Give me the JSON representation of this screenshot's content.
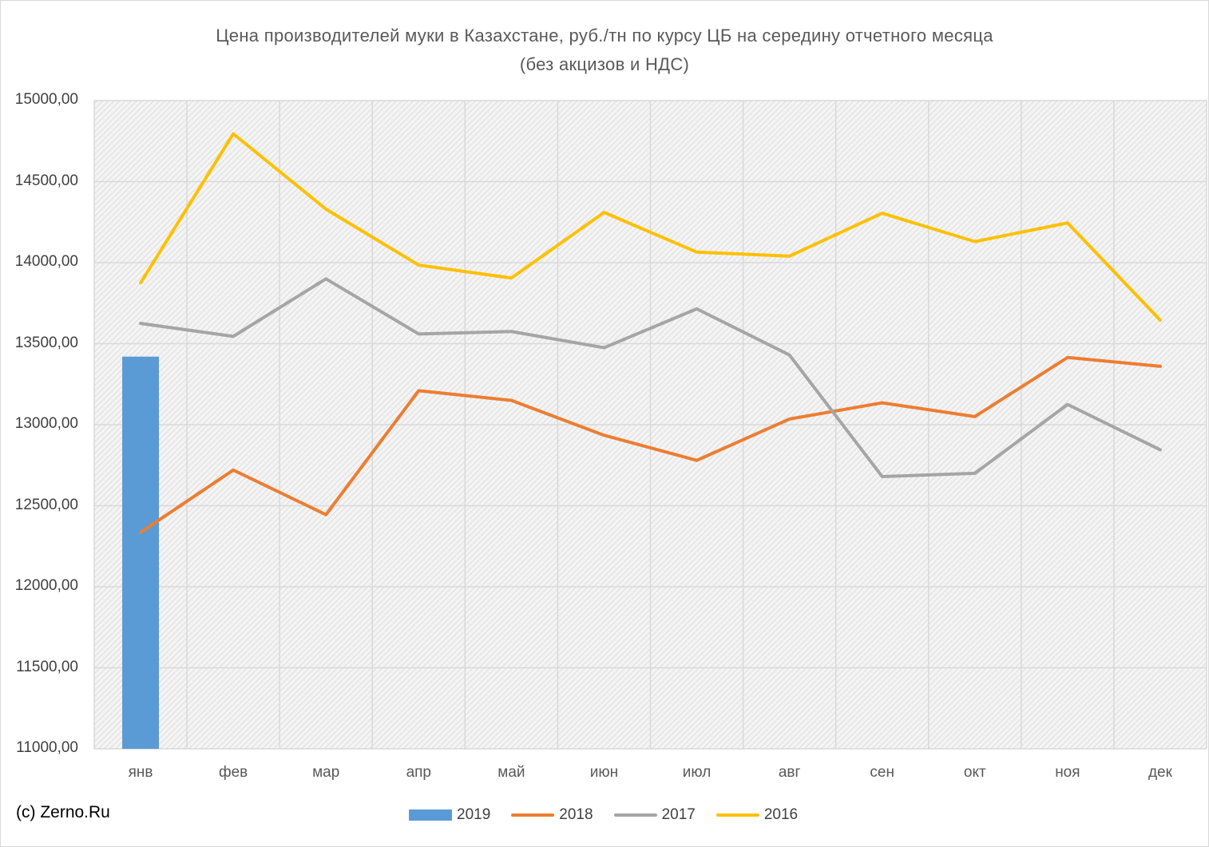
{
  "title": {
    "line1": "Цена производителей муки в Казахстане, руб./тн по курсу ЦБ на середину отчетного месяца",
    "line2": "(без акцизов и НДС)"
  },
  "credit": "(c) Zerno.Ru",
  "chart_data": {
    "type": "bar+line",
    "categories": [
      "янв",
      "фев",
      "мар",
      "апр",
      "май",
      "июн",
      "июл",
      "авг",
      "сен",
      "окт",
      "ноя",
      "дек"
    ],
    "ylim": [
      11000,
      15000
    ],
    "yticks": [
      "11000,00",
      "11500,00",
      "12000,00",
      "12500,00",
      "13000,00",
      "13500,00",
      "14000,00",
      "14500,00",
      "15000,00"
    ],
    "grid": true,
    "legend_position": "bottom",
    "series": [
      {
        "name": "2019",
        "kind": "bar",
        "color": "#5b9bd5",
        "values": [
          13420,
          null,
          null,
          null,
          null,
          null,
          null,
          null,
          null,
          null,
          null,
          null
        ]
      },
      {
        "name": "2018",
        "kind": "line",
        "color": "#ed7d31",
        "values": [
          12335,
          12720,
          12445,
          13210,
          13150,
          12935,
          12780,
          13035,
          13135,
          13050,
          13415,
          13360
        ]
      },
      {
        "name": "2017",
        "kind": "line",
        "color": "#a5a5a5",
        "values": [
          13625,
          13545,
          13900,
          13560,
          13575,
          13475,
          13715,
          13430,
          12680,
          12700,
          13125,
          12845
        ]
      },
      {
        "name": "2016",
        "kind": "line",
        "color": "#ffc000",
        "values": [
          13875,
          14795,
          14330,
          13985,
          13905,
          14310,
          14065,
          14040,
          14305,
          14130,
          14245,
          13645
        ]
      }
    ]
  }
}
